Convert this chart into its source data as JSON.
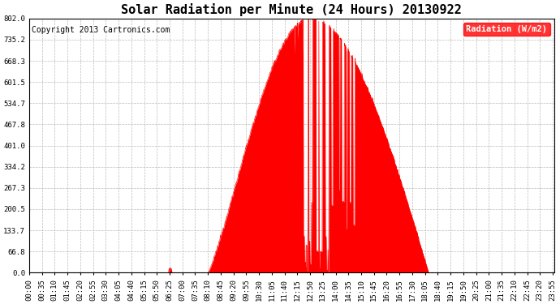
{
  "title": "Solar Radiation per Minute (24 Hours) 20130922",
  "copyright": "Copyright 2013 Cartronics.com",
  "legend_label": "Radiation (W/m2)",
  "ylim": [
    0.0,
    802.0
  ],
  "yticks": [
    0.0,
    66.8,
    133.7,
    200.5,
    267.3,
    334.2,
    401.0,
    467.8,
    534.7,
    601.5,
    668.3,
    735.2,
    802.0
  ],
  "ytick_labels": [
    "0.0",
    "66.8",
    "133.7",
    "200.5",
    "267.3",
    "334.2",
    "401.0",
    "467.8",
    "534.7",
    "601.5",
    "668.3",
    "735.2",
    "802.0"
  ],
  "fill_color": "#FF0000",
  "line_color": "#FF0000",
  "background_color": "#FFFFFF",
  "grid_color": "#AAAAAA",
  "title_fontsize": 11,
  "copyright_fontsize": 7,
  "tick_fontsize": 6.5,
  "legend_fontsize": 7.5,
  "hline_color": "#FF0000",
  "sunrise": 490,
  "sunset": 1095,
  "peak": 770,
  "peak_val": 802.0,
  "n_minutes": 1440
}
